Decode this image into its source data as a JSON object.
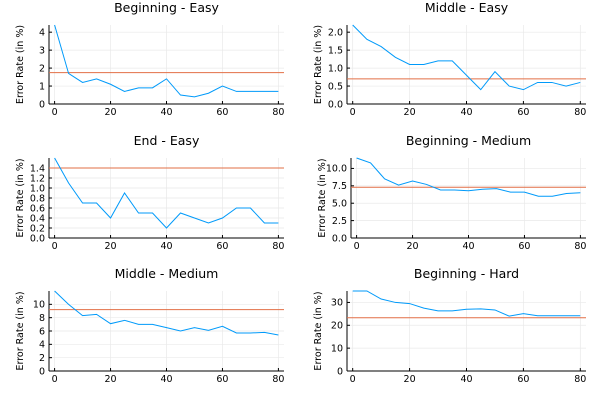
{
  "figure": {
    "colors": {
      "series": "#009AFA",
      "reference": "#E26F46",
      "grid": "#e9e9e9",
      "axis": "#000000"
    }
  },
  "chart_data": [
    {
      "type": "line",
      "title": "Beginning - Easy",
      "ylabel": "Error Rate (in %)",
      "xlim": [
        0,
        80
      ],
      "ylim": [
        0,
        4.4
      ],
      "xticks": [
        0,
        20,
        40,
        60,
        80
      ],
      "yticks": [
        0,
        1,
        2,
        3,
        4
      ],
      "x": [
        0,
        5,
        10,
        15,
        20,
        25,
        30,
        35,
        40,
        45,
        50,
        55,
        60,
        65,
        70,
        75,
        80
      ],
      "values": [
        4.4,
        1.7,
        1.2,
        1.4,
        1.1,
        0.7,
        0.9,
        0.9,
        1.4,
        0.5,
        0.4,
        0.6,
        1.0,
        0.7,
        0.7,
        0.7,
        0.7
      ],
      "reference": 1.75,
      "grid": true
    },
    {
      "type": "line",
      "title": "Middle - Easy",
      "ylabel": "Error Rate (in %)",
      "xlim": [
        0,
        80
      ],
      "ylim": [
        0,
        2.2
      ],
      "xticks": [
        0,
        20,
        40,
        60,
        80
      ],
      "yticks": [
        0,
        0.5,
        1.0,
        1.5,
        2.0
      ],
      "x": [
        0,
        5,
        10,
        15,
        20,
        25,
        30,
        35,
        40,
        45,
        50,
        55,
        60,
        65,
        70,
        75,
        80
      ],
      "values": [
        2.2,
        1.8,
        1.6,
        1.3,
        1.1,
        1.1,
        1.2,
        1.2,
        0.8,
        0.4,
        0.9,
        0.5,
        0.4,
        0.6,
        0.6,
        0.5,
        0.6
      ],
      "reference": 0.7,
      "grid": true
    },
    {
      "type": "line",
      "title": "End - Easy",
      "ylabel": "Error Rate (in %)",
      "xlim": [
        0,
        80
      ],
      "ylim": [
        0,
        1.6
      ],
      "xticks": [
        0,
        20,
        40,
        60,
        80
      ],
      "yticks": [
        0,
        0.2,
        0.4,
        0.6,
        0.8,
        1.0,
        1.2,
        1.4
      ],
      "x": [
        0,
        5,
        10,
        15,
        20,
        25,
        30,
        35,
        40,
        45,
        50,
        55,
        60,
        65,
        70,
        75,
        80
      ],
      "values": [
        1.6,
        1.1,
        0.7,
        0.7,
        0.4,
        0.9,
        0.5,
        0.5,
        0.2,
        0.5,
        0.4,
        0.3,
        0.4,
        0.6,
        0.6,
        0.3,
        0.3
      ],
      "reference": 1.4,
      "grid": true
    },
    {
      "type": "line",
      "title": "Beginning - Medium",
      "ylabel": "Error Rate (in %)",
      "xlim": [
        0,
        80
      ],
      "ylim": [
        0,
        11.5
      ],
      "xticks": [
        0,
        20,
        40,
        60,
        80
      ],
      "yticks": [
        0.0,
        2.5,
        5.0,
        7.5,
        10.0
      ],
      "x": [
        0,
        5,
        10,
        15,
        20,
        25,
        30,
        35,
        40,
        45,
        50,
        55,
        60,
        65,
        70,
        75,
        80
      ],
      "values": [
        11.5,
        10.8,
        8.5,
        7.6,
        8.2,
        7.7,
        6.9,
        6.9,
        6.8,
        7.0,
        7.1,
        6.6,
        6.6,
        6.0,
        6.0,
        6.4,
        6.5
      ],
      "reference": 7.3,
      "grid": true
    },
    {
      "type": "line",
      "title": "Middle - Medium",
      "ylabel": "Error Rate (in %)",
      "xlim": [
        0,
        80
      ],
      "ylim": [
        0,
        12
      ],
      "xticks": [
        0,
        20,
        40,
        60,
        80
      ],
      "yticks": [
        0,
        2,
        4,
        6,
        8,
        10
      ],
      "x": [
        0,
        5,
        10,
        15,
        20,
        25,
        30,
        35,
        40,
        45,
        50,
        55,
        60,
        65,
        70,
        75,
        80
      ],
      "values": [
        12,
        10,
        8.3,
        8.5,
        7.1,
        7.6,
        7.0,
        7.0,
        6.5,
        6.0,
        6.5,
        6.1,
        6.7,
        5.7,
        5.7,
        5.8,
        5.4
      ],
      "reference": 9.2,
      "grid": true
    },
    {
      "type": "line",
      "title": "Beginning - Hard",
      "ylabel": "Error Rate (in %)",
      "xlim": [
        0,
        80
      ],
      "ylim": [
        0,
        35
      ],
      "xticks": [
        0,
        20,
        40,
        60,
        80
      ],
      "yticks": [
        0,
        10,
        20,
        30
      ],
      "x": [
        0,
        5,
        10,
        15,
        20,
        25,
        30,
        35,
        40,
        45,
        50,
        55,
        60,
        65,
        70,
        75,
        80
      ],
      "values": [
        35,
        35,
        31.5,
        30,
        29.5,
        27.5,
        26.3,
        26.3,
        27,
        27.2,
        26.7,
        24,
        25.1,
        24.2,
        24.2,
        24.2,
        24.2
      ],
      "reference": 23.3,
      "grid": true
    }
  ]
}
